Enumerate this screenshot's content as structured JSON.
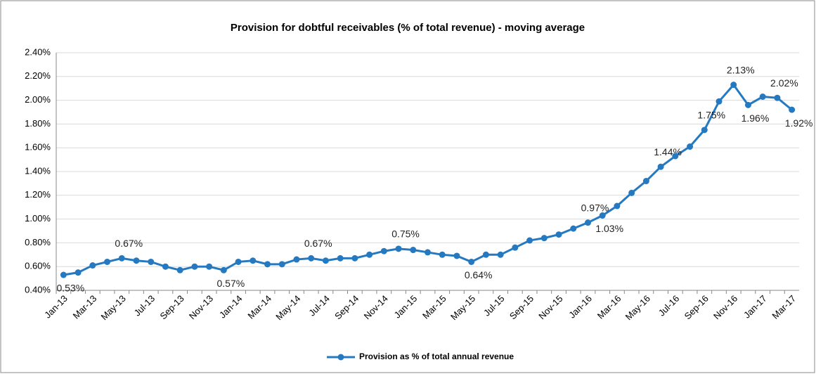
{
  "chart_data": {
    "type": "line",
    "title": "Provision for dobtful receivables (% of total revenue) - moving average",
    "categories": [
      "Jan-13",
      null,
      "Mar-13",
      null,
      "May-13",
      null,
      "Jul-13",
      null,
      "Sep-13",
      null,
      "Nov-13",
      null,
      "Jan-14",
      null,
      "Mar-14",
      null,
      "May-14",
      null,
      "Jul-14",
      null,
      "Sep-14",
      null,
      "Nov-14",
      null,
      "Jan-15",
      null,
      "Mar-15",
      null,
      "May-15",
      null,
      "Jul-15",
      null,
      "Sep-15",
      null,
      "Nov-15",
      null,
      "Jan-16",
      null,
      "Mar-16",
      null,
      "May-16",
      null,
      "Jul-16",
      null,
      "Sep-16",
      null,
      "Nov-16",
      null,
      "Jan-17",
      null,
      "Mar-17"
    ],
    "series": [
      {
        "name": "Provision as % of total annual revenue",
        "color": "#2479c0",
        "values": [
          0.53,
          0.55,
          0.61,
          0.64,
          0.67,
          0.65,
          0.64,
          0.6,
          0.57,
          0.6,
          0.6,
          0.57,
          0.64,
          0.65,
          0.62,
          0.62,
          0.66,
          0.67,
          0.65,
          0.67,
          0.67,
          0.7,
          0.73,
          0.75,
          0.74,
          0.72,
          0.7,
          0.69,
          0.64,
          0.7,
          0.7,
          0.76,
          0.82,
          0.84,
          0.87,
          0.92,
          0.97,
          1.03,
          1.11,
          1.22,
          1.32,
          1.44,
          1.53,
          1.61,
          1.75,
          1.99,
          2.13,
          1.96,
          2.03,
          2.02,
          1.92
        ],
        "value_labels": [
          "0.53%",
          null,
          null,
          null,
          "0.67%",
          null,
          null,
          null,
          null,
          null,
          null,
          "0.57%",
          null,
          null,
          null,
          null,
          null,
          "0.67%",
          null,
          null,
          null,
          null,
          null,
          "0.75%",
          null,
          null,
          null,
          null,
          "0.64%",
          null,
          null,
          null,
          null,
          null,
          null,
          null,
          "0.97%",
          "1.03%",
          null,
          null,
          null,
          "1.44%",
          null,
          null,
          "1.75%",
          null,
          "2.13%",
          "1.96%",
          null,
          "2.02%",
          "1.92%"
        ]
      }
    ],
    "ylim": [
      0.4,
      2.4
    ],
    "yticks": [
      {
        "value": 0.4,
        "label": "0.40%"
      },
      {
        "value": 0.6,
        "label": "0.60%"
      },
      {
        "value": 0.8,
        "label": "0.80%"
      },
      {
        "value": 1.0,
        "label": "1.00%"
      },
      {
        "value": 1.2,
        "label": "1.20%"
      },
      {
        "value": 1.4,
        "label": "1.40%"
      },
      {
        "value": 1.6,
        "label": "1.60%"
      },
      {
        "value": 1.8,
        "label": "1.80%"
      },
      {
        "value": 2.0,
        "label": "2.00%"
      },
      {
        "value": 2.2,
        "label": "2.20%"
      },
      {
        "value": 2.4,
        "label": "2.40%"
      }
    ],
    "grid": true,
    "legend": "bottom"
  }
}
